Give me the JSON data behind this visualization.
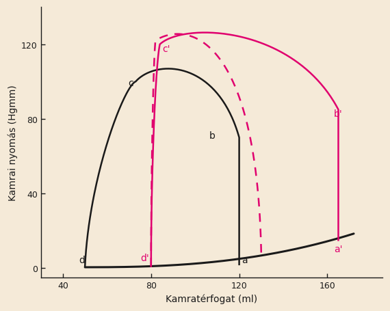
{
  "bg_color": "#f5ead8",
  "black_color": "#1a1a1a",
  "pink_color": "#e0006e",
  "xlabel": "Kamratérfogat (ml)",
  "ylabel": "Kamrai nyómás (Hgmm)",
  "xlim": [
    30,
    185
  ],
  "ylim": [
    -5,
    140
  ],
  "xticks": [
    40,
    80,
    120,
    160
  ],
  "yticks": [
    0,
    40,
    80,
    120
  ]
}
